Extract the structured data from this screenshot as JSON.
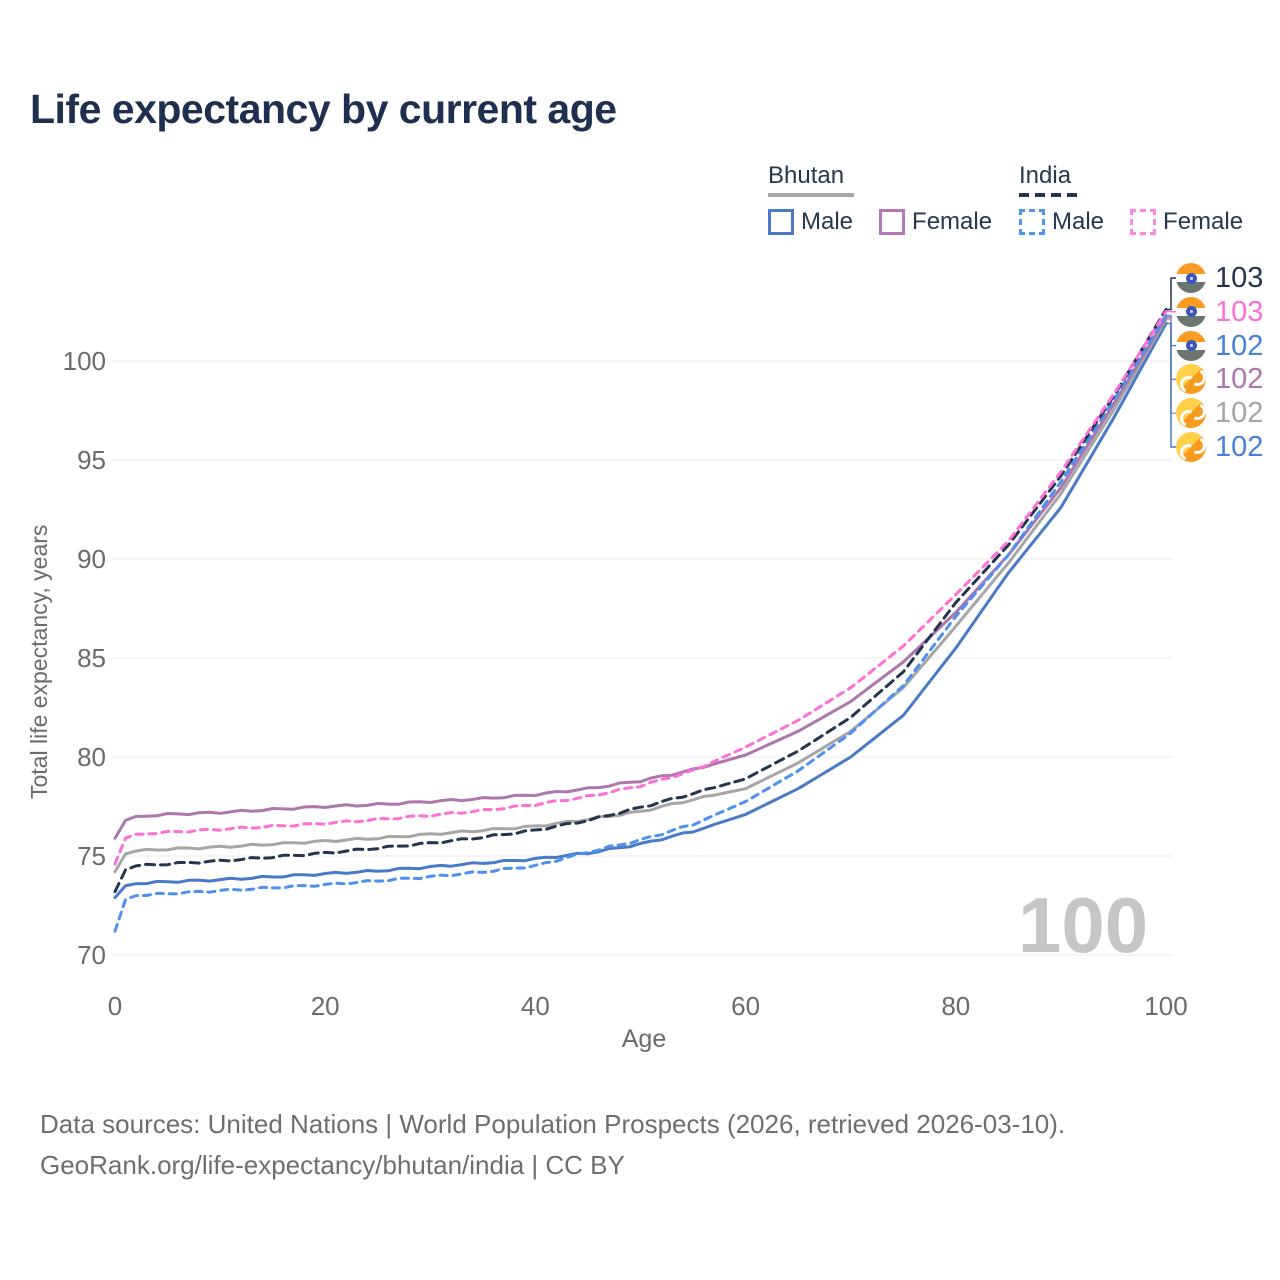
{
  "watermark": "100",
  "legend": {
    "groups": [
      {
        "name": "Bhutan",
        "line_style": "solid",
        "rule_color": "#a6a6a6",
        "items": [
          {
            "label": "Male",
            "color": "#4a79c6",
            "dashed": false
          },
          {
            "label": "Female",
            "color": "#b678ba",
            "dashed": false
          }
        ]
      },
      {
        "name": "India",
        "line_style": "dashed",
        "rule_color": "#25354f",
        "items": [
          {
            "label": "Male",
            "color": "#4d94f5",
            "dashed": true
          },
          {
            "label": "Female",
            "color": "#ff85e8",
            "dashed": true
          }
        ]
      }
    ]
  },
  "end_labels": [
    {
      "series": "india-total",
      "value": "103",
      "color": "#26354e",
      "country": "india"
    },
    {
      "series": "india-female",
      "value": "103",
      "color": "#ff6fd8",
      "country": "india"
    },
    {
      "series": "india-male",
      "value": "102",
      "color": "#4a80d9",
      "country": "india"
    },
    {
      "series": "bhutan-female",
      "value": "102",
      "color": "#ad76ae",
      "country": "bhutan"
    },
    {
      "series": "bhutan-total",
      "value": "102",
      "color": "#a6a6a6",
      "country": "bhutan"
    },
    {
      "series": "bhutan-male",
      "value": "102",
      "color": "#4a80d9",
      "country": "bhutan"
    }
  ],
  "footer": {
    "line1": "Data sources: United Nations | World Population Prospects (2026, retrieved 2026-03-10).",
    "line2": "GeoRank.org/life-expectancy/bhutan/india | CC BY"
  },
  "chart_data": {
    "type": "line",
    "title": "Life expectancy by current age",
    "xlabel": "Age",
    "ylabel": "Total life expectancy, years",
    "xlim": [
      0,
      100
    ],
    "ylim": [
      70,
      103
    ],
    "x_ticks": [
      0,
      20,
      40,
      60,
      80,
      100
    ],
    "y_ticks": [
      70,
      75,
      80,
      85,
      90,
      95,
      100
    ],
    "grid": "horizontal",
    "legend_position": "top-right",
    "anchor_ages": [
      0,
      1,
      2,
      5,
      10,
      15,
      20,
      25,
      30,
      35,
      40,
      45,
      50,
      55,
      60,
      65,
      70,
      75,
      80,
      85,
      90,
      95,
      100
    ],
    "series": [
      {
        "id": "bhutan-male",
        "name": "Bhutan Male",
        "country": "Bhutan",
        "sex": "male",
        "color": "#4a79c6",
        "dash": "solid",
        "values": [
          72.9,
          73.5,
          73.6,
          73.7,
          73.8,
          73.95,
          74.1,
          74.25,
          74.45,
          74.65,
          74.85,
          75.15,
          75.6,
          76.25,
          77.1,
          78.4,
          80.0,
          82.1,
          85.5,
          89.3,
          92.6,
          97.1,
          101.9
        ]
      },
      {
        "id": "bhutan-total",
        "name": "Bhutan",
        "country": "Bhutan",
        "sex": "both",
        "color": "#a6a6a6",
        "dash": "solid",
        "values": [
          74.2,
          75.1,
          75.25,
          75.35,
          75.45,
          75.6,
          75.75,
          75.9,
          76.1,
          76.3,
          76.5,
          76.85,
          77.25,
          77.85,
          78.4,
          79.7,
          81.3,
          83.5,
          86.6,
          89.8,
          93.3,
          97.5,
          102.1
        ]
      },
      {
        "id": "bhutan-female",
        "name": "Bhutan Female",
        "country": "Bhutan",
        "sex": "female",
        "color": "#ad76ae",
        "dash": "solid",
        "values": [
          75.9,
          76.8,
          77.0,
          77.1,
          77.2,
          77.35,
          77.5,
          77.6,
          77.75,
          77.9,
          78.1,
          78.4,
          78.8,
          79.35,
          80.1,
          81.3,
          82.8,
          84.8,
          87.3,
          90.2,
          93.6,
          97.8,
          102.2
        ]
      },
      {
        "id": "india-male",
        "name": "India Male",
        "country": "India",
        "sex": "male",
        "color": "#4d90f0",
        "dash": "dashed",
        "values": [
          71.2,
          72.8,
          73.0,
          73.1,
          73.25,
          73.4,
          73.55,
          73.75,
          73.95,
          74.2,
          74.5,
          75.2,
          75.8,
          76.6,
          77.75,
          79.3,
          81.2,
          83.6,
          87.1,
          90.2,
          93.9,
          98.0,
          102.3
        ]
      },
      {
        "id": "india-total",
        "name": "India",
        "country": "India",
        "sex": "both",
        "color": "#25354f",
        "dash": "dashed",
        "values": [
          73.2,
          74.3,
          74.5,
          74.6,
          74.75,
          74.95,
          75.15,
          75.4,
          75.65,
          75.95,
          76.3,
          76.8,
          77.45,
          78.15,
          78.9,
          80.3,
          82.0,
          84.3,
          87.8,
          90.7,
          94.2,
          98.2,
          102.6
        ]
      },
      {
        "id": "india-female",
        "name": "India Female",
        "country": "India",
        "sex": "female",
        "color": "#ff6fd8",
        "dash": "dashed",
        "values": [
          74.6,
          75.9,
          76.1,
          76.2,
          76.35,
          76.5,
          76.65,
          76.85,
          77.05,
          77.3,
          77.6,
          78.0,
          78.55,
          79.3,
          80.5,
          81.85,
          83.5,
          85.6,
          88.2,
          90.9,
          94.4,
          98.3,
          102.5
        ]
      }
    ]
  }
}
